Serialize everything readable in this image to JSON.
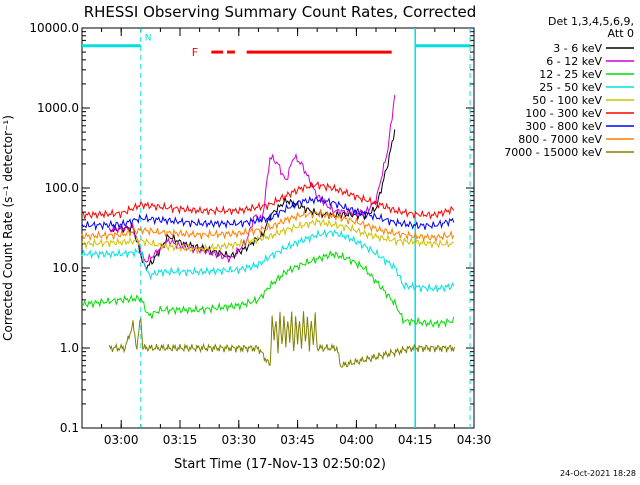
{
  "chart_data": {
    "type": "line",
    "title": "RHESSI Observing Summary Count Rates, Corrected",
    "xlabel": "Start Time (17-Nov-13 02:50:02)",
    "ylabel": "Corrected Count Rate (s⁻¹ detector⁻¹)",
    "yscale": "log",
    "ylim": [
      0.1,
      10000
    ],
    "xlim_minutes": [
      170,
      270
    ],
    "x_unit": "minutes after 00:00 UT",
    "y_ticks": [
      {
        "value": 0.1,
        "label": "0.1"
      },
      {
        "value": 1,
        "label": "1.0"
      },
      {
        "value": 10,
        "label": "10.0"
      },
      {
        "value": 100,
        "label": "100.0"
      },
      {
        "value": 1000,
        "label": "1000.0"
      },
      {
        "value": 10000,
        "label": "10000.0"
      }
    ],
    "x_ticks": [
      {
        "value": 180,
        "label": "03:00"
      },
      {
        "value": 195,
        "label": "03:15"
      },
      {
        "value": 210,
        "label": "03:30"
      },
      {
        "value": 225,
        "label": "03:45"
      },
      {
        "value": 240,
        "label": "04:00"
      },
      {
        "value": 255,
        "label": "04:15"
      },
      {
        "value": 270,
        "label": "04:30"
      }
    ],
    "legend": {
      "placement": "right",
      "header": [
        "Det 1,3,4,5,6,9,",
        "Att 0"
      ]
    },
    "series": [
      {
        "name": "3 - 6 keV",
        "color": "#000000",
        "x": [
          177,
          180,
          183,
          186,
          188,
          192,
          196,
          200,
          204,
          208,
          212,
          214,
          216,
          218,
          222,
          226,
          230,
          234,
          238,
          242,
          245,
          248,
          250
        ],
        "y": [
          30,
          31,
          32,
          10,
          12,
          25,
          20,
          18,
          16,
          14,
          18,
          22,
          25,
          45,
          70,
          58,
          48,
          46,
          47,
          45,
          55,
          200,
          600
        ]
      },
      {
        "name": "6 - 12 keV",
        "color": "#d000d0",
        "x": [
          177,
          180,
          183,
          186,
          188,
          192,
          196,
          200,
          204,
          208,
          212,
          214,
          216,
          218,
          220,
          222,
          224,
          226,
          230,
          234,
          238,
          242,
          245,
          248,
          250
        ],
        "y": [
          30,
          31,
          32,
          12,
          14,
          22,
          18,
          17,
          15,
          13,
          22,
          45,
          40,
          250,
          200,
          120,
          250,
          200,
          80,
          52,
          50,
          48,
          70,
          300,
          1750
        ]
      },
      {
        "name": "12 - 25 keV",
        "color": "#00dd00",
        "x": [
          170,
          180,
          185,
          187,
          190,
          200,
          210,
          215,
          218,
          222,
          226,
          230,
          234,
          238,
          242,
          246,
          250,
          252,
          260,
          265
        ],
        "y": [
          3.5,
          4,
          4.2,
          2.5,
          3,
          3,
          3.4,
          4,
          6,
          9,
          11,
          13,
          15,
          13,
          10,
          6,
          3.5,
          2.2,
          2,
          2.2
        ]
      },
      {
        "name": "25 - 50 keV",
        "color": "#00e0e0",
        "x": [
          170,
          180,
          185,
          187,
          190,
          200,
          210,
          215,
          218,
          222,
          226,
          230,
          234,
          238,
          242,
          246,
          250,
          252,
          260,
          265
        ],
        "y": [
          15,
          15,
          16,
          8,
          9,
          9,
          9.5,
          11,
          14,
          18,
          22,
          26,
          28,
          24,
          19,
          14,
          10,
          6,
          5.5,
          6
        ]
      },
      {
        "name": "50 - 100 keV",
        "color": "#d0c000",
        "x": [
          170,
          180,
          185,
          190,
          200,
          210,
          218,
          222,
          226,
          230,
          234,
          238,
          242,
          246,
          250,
          255,
          260,
          265
        ],
        "y": [
          20,
          21,
          22,
          19,
          17,
          20,
          25,
          30,
          34,
          38,
          35,
          32,
          27,
          24,
          22,
          21,
          20,
          20
        ]
      },
      {
        "name": "100 - 300 keV",
        "color": "#ff0000",
        "x": [
          170,
          180,
          185,
          190,
          200,
          210,
          218,
          222,
          226,
          230,
          234,
          238,
          242,
          246,
          250,
          255,
          260,
          265
        ],
        "y": [
          46,
          48,
          62,
          58,
          52,
          52,
          62,
          80,
          100,
          110,
          100,
          85,
          72,
          62,
          52,
          47,
          46,
          55
        ]
      },
      {
        "name": "300 - 800 keV",
        "color": "#0000ff",
        "x": [
          170,
          180,
          185,
          190,
          200,
          210,
          218,
          222,
          226,
          230,
          234,
          238,
          242,
          246,
          250,
          255,
          260,
          265
        ],
        "y": [
          34,
          35,
          42,
          40,
          36,
          36,
          42,
          55,
          68,
          72,
          66,
          55,
          48,
          42,
          37,
          34,
          34,
          40
        ]
      },
      {
        "name": "800 - 7000 keV",
        "color": "#ff8000",
        "x": [
          170,
          180,
          185,
          190,
          200,
          210,
          218,
          222,
          226,
          230,
          234,
          238,
          242,
          246,
          250,
          255,
          260,
          265
        ],
        "y": [
          25,
          26,
          30,
          28,
          26,
          27,
          32,
          40,
          46,
          48,
          45,
          40,
          35,
          30,
          27,
          25,
          24,
          26
        ]
      },
      {
        "name": "7000 - 15000 keV",
        "color": "#808000",
        "x": [
          177,
          181,
          183,
          184,
          185,
          185.5,
          186,
          215,
          218,
          218.5,
          219,
          219.5,
          220,
          220.5,
          221,
          221.5,
          222,
          222.5,
          223,
          223.5,
          224,
          224.5,
          225,
          225.5,
          226,
          226.5,
          227,
          227.5,
          228,
          228.5,
          229,
          229.5,
          230,
          235,
          236,
          254,
          260,
          265
        ],
        "y": [
          1,
          1,
          2,
          1,
          2.5,
          1,
          1,
          1,
          0.6,
          2.5,
          1.2,
          2.4,
          0.9,
          2.6,
          1.1,
          2.5,
          1.0,
          2.4,
          1.2,
          2.6,
          0.9,
          2.5,
          1.1,
          2.4,
          1.0,
          2.6,
          1.2,
          2.5,
          0.9,
          2.4,
          1.1,
          2.5,
          1,
          1,
          0.6,
          1,
          1,
          1
        ]
      }
    ],
    "annotations": {
      "night_label": "N",
      "flare_label": "F",
      "saa_intervals_minutes": [
        [
          170,
          185
        ],
        [
          255,
          269
        ]
      ],
      "flare_intervals_minutes": [
        [
          203,
          206
        ],
        [
          207,
          209
        ],
        [
          212,
          249
        ]
      ]
    }
  },
  "footer": {
    "timestamp": "24-Oct-2021 18:28"
  }
}
